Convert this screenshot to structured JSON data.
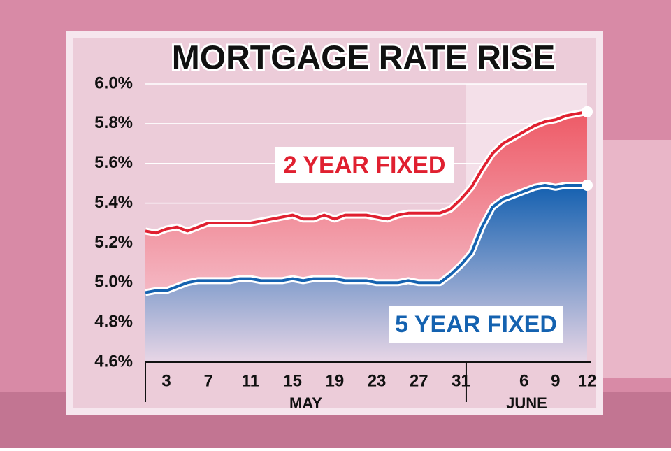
{
  "chart_data": {
    "type": "line",
    "title": "MORTGAGE RATE RISE",
    "months": [
      {
        "label": "MAY",
        "categories": [
          null,
          null,
          "3",
          null,
          null,
          null,
          "7",
          null,
          null,
          null,
          "11",
          null,
          null,
          null,
          "15",
          null,
          null,
          null,
          "19",
          null,
          null,
          null,
          "23",
          null,
          null,
          null,
          "27",
          null,
          null,
          null,
          "31"
        ]
      },
      {
        "label": "JUNE",
        "categories": [
          null,
          null,
          null,
          null,
          null,
          "6",
          null,
          null,
          "9",
          null,
          null,
          "12"
        ]
      }
    ],
    "series": [
      {
        "name": "2 YEAR FIXED",
        "color": "#e02030",
        "values": [
          5.26,
          5.25,
          5.27,
          5.28,
          5.26,
          5.28,
          5.3,
          5.3,
          5.3,
          5.3,
          5.3,
          5.31,
          5.32,
          5.33,
          5.34,
          5.32,
          5.32,
          5.34,
          5.32,
          5.34,
          5.34,
          5.34,
          5.33,
          5.32,
          5.34,
          5.35,
          5.35,
          5.35,
          5.35,
          5.37,
          5.42,
          5.48,
          5.57,
          5.65,
          5.7,
          5.73,
          5.76,
          5.79,
          5.81,
          5.82,
          5.84,
          5.85,
          5.86
        ]
      },
      {
        "name": "5 YEAR FIXED",
        "color": "#1462b0",
        "values": [
          4.95,
          4.96,
          4.96,
          4.98,
          5.0,
          5.01,
          5.01,
          5.01,
          5.01,
          5.02,
          5.02,
          5.01,
          5.01,
          5.01,
          5.02,
          5.01,
          5.02,
          5.02,
          5.02,
          5.01,
          5.01,
          5.01,
          5.0,
          5.0,
          5.0,
          5.01,
          5.0,
          5.0,
          5.0,
          5.04,
          5.09,
          5.15,
          5.28,
          5.38,
          5.42,
          5.44,
          5.46,
          5.48,
          5.49,
          5.48,
          5.49,
          5.49,
          5.49
        ]
      }
    ],
    "ylim": [
      4.6,
      6.0
    ],
    "yticks": [
      {
        "value": 4.6,
        "label": "4.6%"
      },
      {
        "value": 4.8,
        "label": "4.8%"
      },
      {
        "value": 5.0,
        "label": "5.0%"
      },
      {
        "value": 5.2,
        "label": "5.2%"
      },
      {
        "value": 5.4,
        "label": "5.4%"
      },
      {
        "value": 5.6,
        "label": "5.6%"
      },
      {
        "value": 5.8,
        "label": "5.8%"
      },
      {
        "value": 6.0,
        "label": "6.0%"
      }
    ],
    "grid": true
  }
}
